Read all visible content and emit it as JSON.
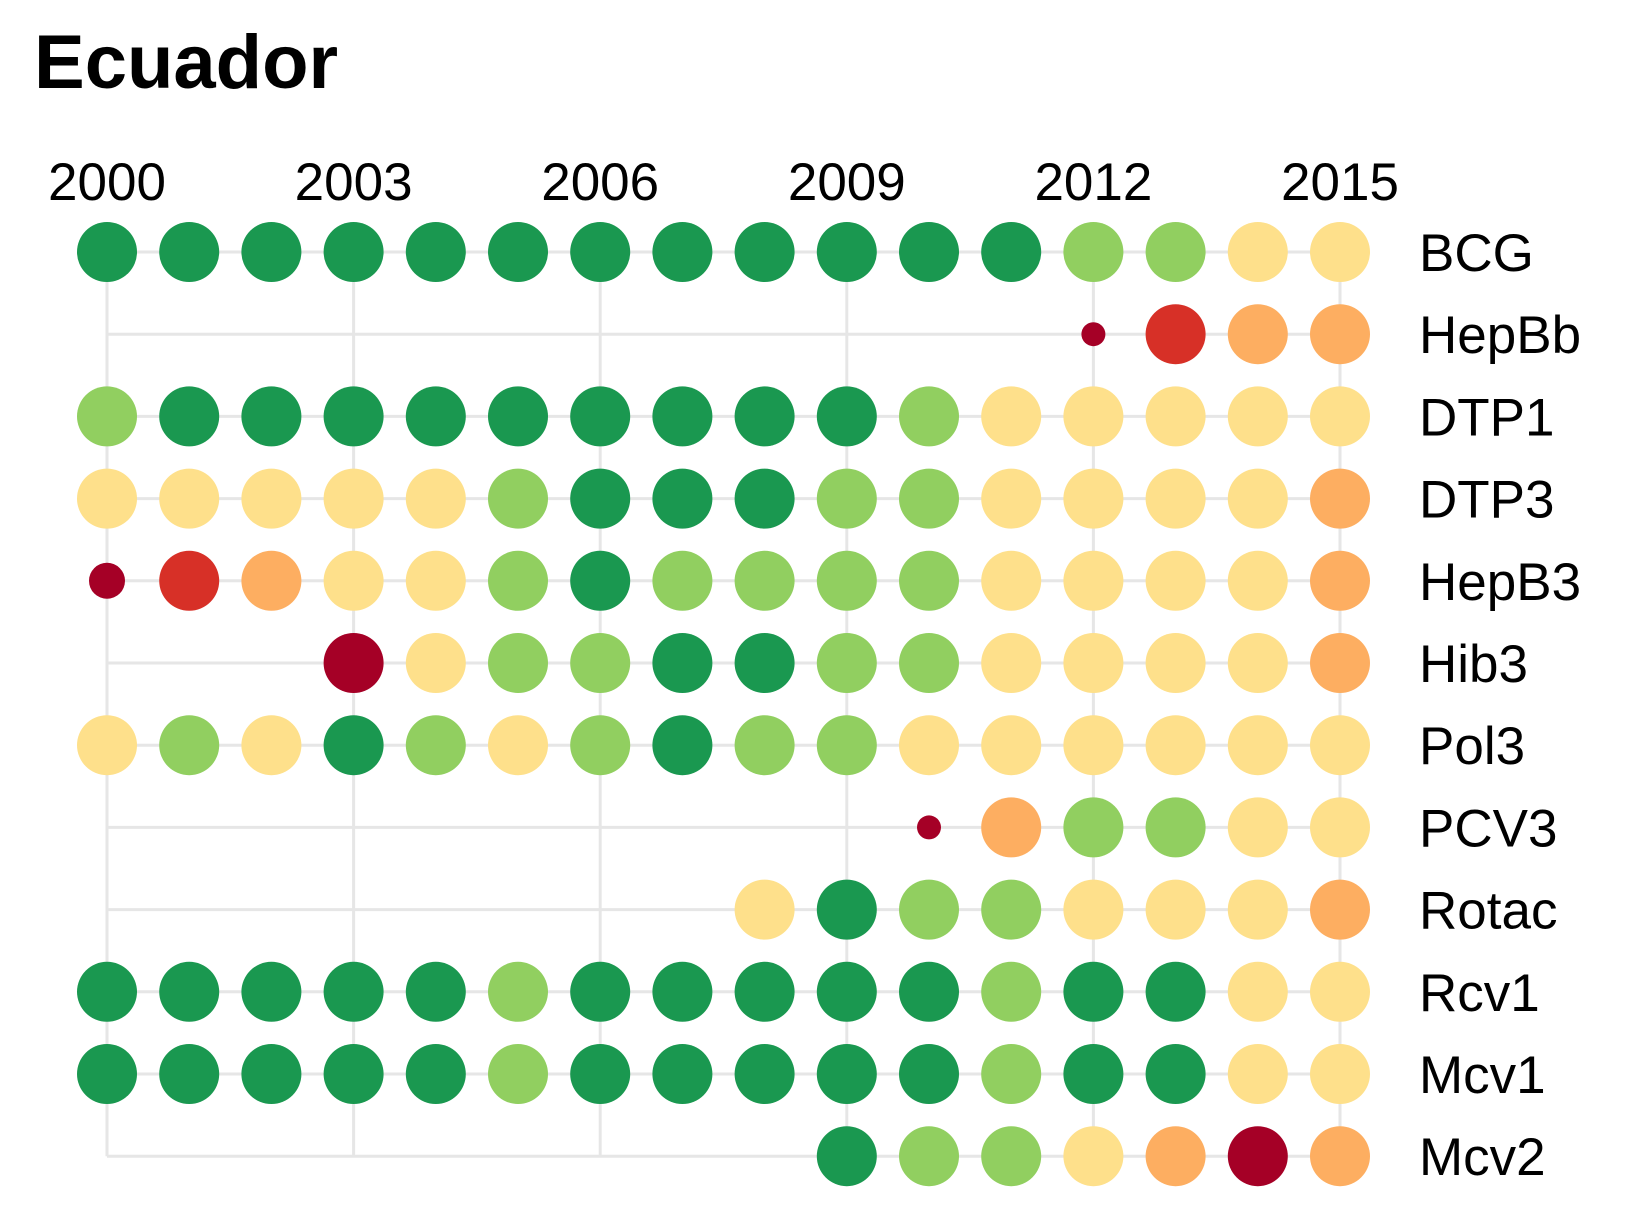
{
  "chart_data": {
    "type": "scatter",
    "title": "Ecuador",
    "x": [
      2000,
      2001,
      2002,
      2003,
      2004,
      2005,
      2006,
      2007,
      2008,
      2009,
      2010,
      2011,
      2012,
      2013,
      2014,
      2015
    ],
    "x_ticks": [
      "2000",
      "2003",
      "2006",
      "2009",
      "2012",
      "2015"
    ],
    "x_tick_values": [
      2000,
      2003,
      2006,
      2009,
      2012,
      2015
    ],
    "grid": true,
    "legend": "none",
    "colors": {
      "dark_green": "#1a9850",
      "light_green": "#91cf60",
      "yellow": "#fee08b",
      "orange": "#fdae61",
      "red": "#d73027",
      "dark_red": "#a50026"
    },
    "series": [
      {
        "name": "BCG",
        "start": 2000,
        "points": [
          [
            "dark_green",
            "L"
          ],
          [
            "dark_green",
            "L"
          ],
          [
            "dark_green",
            "L"
          ],
          [
            "dark_green",
            "L"
          ],
          [
            "dark_green",
            "L"
          ],
          [
            "dark_green",
            "L"
          ],
          [
            "dark_green",
            "L"
          ],
          [
            "dark_green",
            "L"
          ],
          [
            "dark_green",
            "L"
          ],
          [
            "dark_green",
            "L"
          ],
          [
            "dark_green",
            "L"
          ],
          [
            "dark_green",
            "L"
          ],
          [
            "light_green",
            "L"
          ],
          [
            "light_green",
            "L"
          ],
          [
            "yellow",
            "L"
          ],
          [
            "yellow",
            "L"
          ]
        ]
      },
      {
        "name": "HepBb",
        "start": 2012,
        "points": [
          [
            "dark_red",
            "S"
          ],
          [
            "red",
            "L"
          ],
          [
            "orange",
            "L"
          ],
          [
            "orange",
            "L"
          ]
        ]
      },
      {
        "name": "DTP1",
        "start": 2000,
        "points": [
          [
            "light_green",
            "L"
          ],
          [
            "dark_green",
            "L"
          ],
          [
            "dark_green",
            "L"
          ],
          [
            "dark_green",
            "L"
          ],
          [
            "dark_green",
            "L"
          ],
          [
            "dark_green",
            "L"
          ],
          [
            "dark_green",
            "L"
          ],
          [
            "dark_green",
            "L"
          ],
          [
            "dark_green",
            "L"
          ],
          [
            "dark_green",
            "L"
          ],
          [
            "light_green",
            "L"
          ],
          [
            "yellow",
            "L"
          ],
          [
            "yellow",
            "L"
          ],
          [
            "yellow",
            "L"
          ],
          [
            "yellow",
            "L"
          ],
          [
            "yellow",
            "L"
          ]
        ]
      },
      {
        "name": "DTP3",
        "start": 2000,
        "points": [
          [
            "yellow",
            "L"
          ],
          [
            "yellow",
            "L"
          ],
          [
            "yellow",
            "L"
          ],
          [
            "yellow",
            "L"
          ],
          [
            "yellow",
            "L"
          ],
          [
            "light_green",
            "L"
          ],
          [
            "dark_green",
            "L"
          ],
          [
            "dark_green",
            "L"
          ],
          [
            "dark_green",
            "L"
          ],
          [
            "light_green",
            "L"
          ],
          [
            "light_green",
            "L"
          ],
          [
            "yellow",
            "L"
          ],
          [
            "yellow",
            "L"
          ],
          [
            "yellow",
            "L"
          ],
          [
            "yellow",
            "L"
          ],
          [
            "orange",
            "L"
          ]
        ]
      },
      {
        "name": "HepB3",
        "start": 2000,
        "points": [
          [
            "dark_red",
            "M"
          ],
          [
            "red",
            "L"
          ],
          [
            "orange",
            "L"
          ],
          [
            "yellow",
            "L"
          ],
          [
            "yellow",
            "L"
          ],
          [
            "light_green",
            "L"
          ],
          [
            "dark_green",
            "L"
          ],
          [
            "light_green",
            "L"
          ],
          [
            "light_green",
            "L"
          ],
          [
            "light_green",
            "L"
          ],
          [
            "light_green",
            "L"
          ],
          [
            "yellow",
            "L"
          ],
          [
            "yellow",
            "L"
          ],
          [
            "yellow",
            "L"
          ],
          [
            "yellow",
            "L"
          ],
          [
            "orange",
            "L"
          ]
        ]
      },
      {
        "name": "Hib3",
        "start": 2003,
        "points": [
          [
            "dark_red",
            "L"
          ],
          [
            "yellow",
            "L"
          ],
          [
            "light_green",
            "L"
          ],
          [
            "light_green",
            "L"
          ],
          [
            "dark_green",
            "L"
          ],
          [
            "dark_green",
            "L"
          ],
          [
            "light_green",
            "L"
          ],
          [
            "light_green",
            "L"
          ],
          [
            "yellow",
            "L"
          ],
          [
            "yellow",
            "L"
          ],
          [
            "yellow",
            "L"
          ],
          [
            "yellow",
            "L"
          ],
          [
            "orange",
            "L"
          ]
        ]
      },
      {
        "name": "Pol3",
        "start": 2000,
        "points": [
          [
            "yellow",
            "L"
          ],
          [
            "light_green",
            "L"
          ],
          [
            "yellow",
            "L"
          ],
          [
            "dark_green",
            "L"
          ],
          [
            "light_green",
            "L"
          ],
          [
            "yellow",
            "L"
          ],
          [
            "light_green",
            "L"
          ],
          [
            "dark_green",
            "L"
          ],
          [
            "light_green",
            "L"
          ],
          [
            "light_green",
            "L"
          ],
          [
            "yellow",
            "L"
          ],
          [
            "yellow",
            "L"
          ],
          [
            "yellow",
            "L"
          ],
          [
            "yellow",
            "L"
          ],
          [
            "yellow",
            "L"
          ],
          [
            "yellow",
            "L"
          ]
        ]
      },
      {
        "name": "PCV3",
        "start": 2010,
        "points": [
          [
            "dark_red",
            "S"
          ],
          [
            "orange",
            "L"
          ],
          [
            "light_green",
            "L"
          ],
          [
            "light_green",
            "L"
          ],
          [
            "yellow",
            "L"
          ],
          [
            "yellow",
            "L"
          ]
        ]
      },
      {
        "name": "Rotac",
        "start": 2008,
        "points": [
          [
            "yellow",
            "L"
          ],
          [
            "dark_green",
            "L"
          ],
          [
            "light_green",
            "L"
          ],
          [
            "light_green",
            "L"
          ],
          [
            "yellow",
            "L"
          ],
          [
            "yellow",
            "L"
          ],
          [
            "yellow",
            "L"
          ],
          [
            "orange",
            "L"
          ]
        ]
      },
      {
        "name": "Rcv1",
        "start": 2000,
        "points": [
          [
            "dark_green",
            "L"
          ],
          [
            "dark_green",
            "L"
          ],
          [
            "dark_green",
            "L"
          ],
          [
            "dark_green",
            "L"
          ],
          [
            "dark_green",
            "L"
          ],
          [
            "light_green",
            "L"
          ],
          [
            "dark_green",
            "L"
          ],
          [
            "dark_green",
            "L"
          ],
          [
            "dark_green",
            "L"
          ],
          [
            "dark_green",
            "L"
          ],
          [
            "dark_green",
            "L"
          ],
          [
            "light_green",
            "L"
          ],
          [
            "dark_green",
            "L"
          ],
          [
            "dark_green",
            "L"
          ],
          [
            "yellow",
            "L"
          ],
          [
            "yellow",
            "L"
          ]
        ]
      },
      {
        "name": "Mcv1",
        "start": 2000,
        "points": [
          [
            "dark_green",
            "L"
          ],
          [
            "dark_green",
            "L"
          ],
          [
            "dark_green",
            "L"
          ],
          [
            "dark_green",
            "L"
          ],
          [
            "dark_green",
            "L"
          ],
          [
            "light_green",
            "L"
          ],
          [
            "dark_green",
            "L"
          ],
          [
            "dark_green",
            "L"
          ],
          [
            "dark_green",
            "L"
          ],
          [
            "dark_green",
            "L"
          ],
          [
            "dark_green",
            "L"
          ],
          [
            "light_green",
            "L"
          ],
          [
            "dark_green",
            "L"
          ],
          [
            "dark_green",
            "L"
          ],
          [
            "yellow",
            "L"
          ],
          [
            "yellow",
            "L"
          ]
        ]
      },
      {
        "name": "Mcv2",
        "start": 2009,
        "points": [
          [
            "dark_green",
            "L"
          ],
          [
            "light_green",
            "L"
          ],
          [
            "light_green",
            "L"
          ],
          [
            "yellow",
            "L"
          ],
          [
            "orange",
            "L"
          ],
          [
            "dark_red",
            "L"
          ],
          [
            "orange",
            "L"
          ]
        ]
      }
    ]
  }
}
